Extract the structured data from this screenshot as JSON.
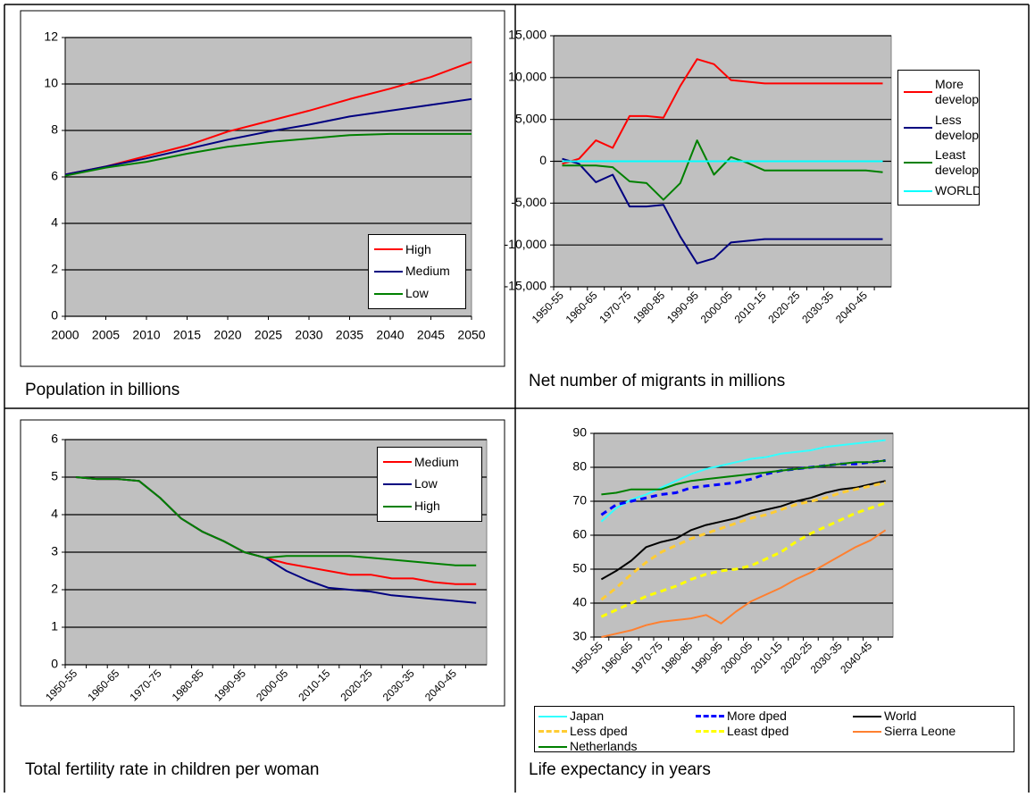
{
  "chart_data": [
    {
      "type": "line",
      "caption": "Population in billions",
      "background": "#c0c0c0",
      "grid": true,
      "legend": "lower right",
      "x": [
        2000,
        2005,
        2010,
        2015,
        2020,
        2025,
        2030,
        2035,
        2040,
        2045,
        2050
      ],
      "xlim": [
        2000,
        2050
      ],
      "xticks": [
        2000,
        2005,
        2010,
        2015,
        2020,
        2025,
        2030,
        2035,
        2040,
        2045,
        2050
      ],
      "ylim": [
        0,
        12
      ],
      "yticks": [
        0,
        2,
        4,
        6,
        8,
        10,
        12
      ],
      "series": [
        {
          "name": "High",
          "color": "#ff0000",
          "values": [
            6.1,
            6.45,
            6.9,
            7.35,
            7.95,
            8.4,
            8.85,
            9.35,
            9.8,
            10.3,
            10.95
          ]
        },
        {
          "name": "Medium",
          "color": "#000080",
          "values": [
            6.1,
            6.45,
            6.8,
            7.2,
            7.6,
            7.95,
            8.25,
            8.6,
            8.85,
            9.1,
            9.35
          ]
        },
        {
          "name": "Low",
          "color": "#008000",
          "values": [
            6.05,
            6.4,
            6.65,
            7.0,
            7.3,
            7.5,
            7.65,
            7.8,
            7.85,
            7.85,
            7.85
          ]
        }
      ]
    },
    {
      "type": "line",
      "caption": "Net number of migrants in millions",
      "background": "#c0c0c0",
      "grid": true,
      "legend": "right",
      "categories": [
        "1950-55",
        null,
        "1960-65",
        null,
        "1970-75",
        null,
        "1980-85",
        null,
        "1990-95",
        null,
        "2000-05",
        null,
        "2010-15",
        null,
        "2020-25",
        null,
        "2030-35",
        null,
        "2040-45",
        null
      ],
      "ylim": [
        -15000,
        15000
      ],
      "yticks": [
        {
          "value": -15000,
          "label": "-15,000"
        },
        {
          "value": -10000,
          "label": "-10,000"
        },
        {
          "value": -5000,
          "label": "-5,000"
        },
        0,
        {
          "value": 5000,
          "label": "5,000"
        },
        {
          "value": 10000,
          "label": "10,000"
        },
        {
          "value": 15000,
          "label": "15,000"
        }
      ],
      "series": [
        {
          "name": "More developed",
          "color": "#ff0000",
          "values": [
            -300,
            300,
            2500,
            1600,
            5400,
            5400,
            5200,
            9000,
            12200,
            11600,
            9700,
            9500,
            9300,
            9300,
            9300,
            9300,
            9300,
            9300,
            9300,
            9300
          ]
        },
        {
          "name": "Less developed",
          "color": "#000080",
          "values": [
            300,
            -300,
            -2500,
            -1600,
            -5400,
            -5400,
            -5200,
            -9000,
            -12200,
            -11600,
            -9700,
            -9500,
            -9300,
            -9300,
            -9300,
            -9300,
            -9300,
            -9300,
            -9300,
            -9300
          ]
        },
        {
          "name": "Least developed",
          "color": "#008000",
          "values": [
            -500,
            -500,
            -500,
            -700,
            -2400,
            -2600,
            -4600,
            -2600,
            2500,
            -1600,
            500,
            -200,
            -1100,
            -1100,
            -1100,
            -1100,
            -1100,
            -1100,
            -1100,
            -1300
          ]
        },
        {
          "name": "WORLD",
          "color": "#00ffff",
          "values": [
            0,
            0,
            0,
            0,
            0,
            0,
            0,
            0,
            0,
            0,
            0,
            0,
            0,
            0,
            0,
            0,
            0,
            0,
            0,
            0
          ]
        }
      ]
    },
    {
      "type": "line",
      "caption": "Total fertility rate in children per woman",
      "background": "#c0c0c0",
      "grid": true,
      "legend": "upper right",
      "categories": [
        "1950-55",
        null,
        "1960-65",
        null,
        "1970-75",
        null,
        "1980-85",
        null,
        "1990-95",
        null,
        "2000-05",
        null,
        "2010-15",
        null,
        "2020-25",
        null,
        "2030-35",
        null,
        "2040-45",
        null
      ],
      "ylim": [
        0,
        6
      ],
      "yticks": [
        0,
        1,
        2,
        3,
        4,
        5,
        6
      ],
      "series": [
        {
          "name": "Medium",
          "color": "#ff0000",
          "values": [
            5.0,
            4.95,
            4.95,
            4.9,
            4.45,
            3.9,
            3.55,
            3.3,
            3.0,
            2.85,
            2.7,
            2.6,
            2.5,
            2.4,
            2.4,
            2.3,
            2.3,
            2.2,
            2.15,
            2.15
          ]
        },
        {
          "name": "Low",
          "color": "#000080",
          "values": [
            5.0,
            4.95,
            4.95,
            4.9,
            4.45,
            3.9,
            3.55,
            3.3,
            3.0,
            2.85,
            2.5,
            2.25,
            2.05,
            2.0,
            1.95,
            1.85,
            1.8,
            1.75,
            1.7,
            1.65
          ]
        },
        {
          "name": "High",
          "color": "#008000",
          "values": [
            5.0,
            4.95,
            4.95,
            4.9,
            4.45,
            3.9,
            3.55,
            3.3,
            3.0,
            2.85,
            2.9,
            2.9,
            2.9,
            2.9,
            2.85,
            2.8,
            2.75,
            2.7,
            2.65,
            2.65
          ]
        }
      ]
    },
    {
      "type": "line",
      "caption": "Life expectancy in years",
      "background": "#c0c0c0",
      "grid": true,
      "legend": "bottom",
      "categories": [
        "1950-55",
        null,
        "1960-65",
        null,
        "1970-75",
        null,
        "1980-85",
        null,
        "1990-95",
        null,
        "2000-05",
        null,
        "2010-15",
        null,
        "2020-25",
        null,
        "2030-35",
        null,
        "2040-45",
        null
      ],
      "ylim": [
        30,
        90
      ],
      "yticks": [
        30,
        40,
        50,
        60,
        70,
        80,
        90
      ],
      "series": [
        {
          "name": "Japan",
          "color": "#33ffff",
          "values": [
            64,
            68,
            70.5,
            72,
            74,
            76,
            78,
            79.5,
            80.5,
            81.5,
            82.5,
            83,
            84,
            84.5,
            85,
            86,
            86.5,
            87,
            87.5,
            88
          ]
        },
        {
          "name": "More dped",
          "color": "#0000ff",
          "dashed": true,
          "values": [
            66,
            69,
            70,
            71,
            72,
            72.5,
            74,
            74.5,
            75,
            75.5,
            76.5,
            78,
            79,
            79.5,
            80,
            80.5,
            81,
            81,
            81.5,
            82
          ]
        },
        {
          "name": "World",
          "color": "#000000",
          "values": [
            47,
            49.5,
            52.5,
            56.5,
            58,
            59,
            61.5,
            63,
            64,
            65,
            66.5,
            67.5,
            68.5,
            70,
            71,
            72.5,
            73.5,
            74,
            75,
            76
          ]
        },
        {
          "name": "Less dped",
          "color": "#ffcc33",
          "dashed": true,
          "values": [
            41,
            44.5,
            48.5,
            52,
            55,
            57,
            59,
            60.5,
            62,
            63.5,
            65,
            66,
            67.5,
            69,
            70,
            71,
            72.5,
            73.5,
            74.5,
            75.5
          ]
        },
        {
          "name": "Least dped",
          "color": "#ffff00",
          "dashed": true,
          "values": [
            36,
            38,
            40,
            42,
            43.5,
            45,
            47,
            48.5,
            49.5,
            50,
            51,
            53,
            55,
            58,
            60.5,
            62.5,
            64.5,
            66.5,
            68,
            69.5
          ]
        },
        {
          "name": "Sierra Leone",
          "color": "#ff8030",
          "values": [
            30,
            31,
            32,
            33.5,
            34.5,
            35,
            35.5,
            36.5,
            34,
            37.5,
            40.5,
            42.5,
            44.5,
            47,
            49,
            51.5,
            54,
            56.5,
            58.5,
            61.5
          ]
        },
        {
          "name": "Netherlands",
          "color": "#008000",
          "values": [
            72,
            72.5,
            73.5,
            73.5,
            73.5,
            75,
            76,
            76.5,
            77,
            77.5,
            78,
            78.5,
            79,
            79.5,
            80,
            80.5,
            81,
            81.5,
            81.5,
            82
          ]
        }
      ]
    }
  ]
}
